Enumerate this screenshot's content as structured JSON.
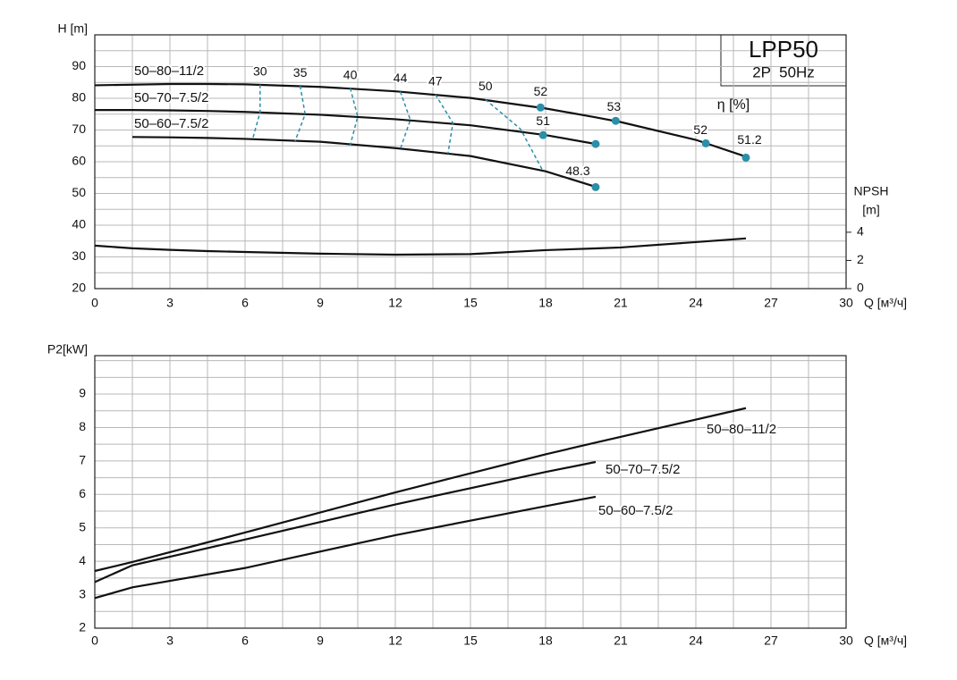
{
  "chart_data": [
    {
      "type": "line",
      "title": "LPP50",
      "subtitle": "2P  50Hz",
      "xlabel": "Q [м³/ч]",
      "ylabel": "H [m]",
      "y2label": [
        "NPSH",
        "[m]"
      ],
      "eta_label": "η [%]",
      "x": [
        0,
        1.5,
        3,
        4.5,
        6,
        9,
        12,
        15,
        18,
        20,
        21,
        24,
        26
      ],
      "xlim": [
        0,
        30
      ],
      "xticks": [
        0,
        3,
        6,
        9,
        12,
        15,
        18,
        21,
        24,
        27,
        30
      ],
      "xminorticks": [
        1.5,
        4.5,
        7.5,
        10.5,
        13.5,
        16.5,
        19.5,
        22.5,
        25.5,
        28.5
      ],
      "ylim": [
        20,
        100
      ],
      "yticks": [
        20,
        30,
        40,
        50,
        60,
        70,
        80,
        90
      ],
      "yminorticks": [
        25,
        35,
        45,
        55,
        65,
        75,
        85,
        95
      ],
      "y2lim": [
        0,
        18
      ],
      "y2ticks": [
        0,
        2,
        4
      ],
      "grid": true,
      "series": [
        {
          "name": "50–80–11/2",
          "color": "#111111",
          "values": [
            84.1,
            84.3,
            84.5,
            84.5,
            84.4,
            83.6,
            82.2,
            80.1,
            76.8,
            74.0,
            72.5,
            66.9,
            61.6
          ]
        },
        {
          "name": "50–70–7.5/2",
          "color": "#111111",
          "values": [
            76.3,
            76.3,
            76.2,
            76.0,
            75.7,
            74.8,
            73.4,
            71.5,
            68.4,
            65.6,
            null,
            null,
            null
          ]
        },
        {
          "name": "50–60–7.5/2",
          "color": "#111111",
          "values": [
            null,
            67.8,
            67.7,
            67.5,
            67.2,
            66.3,
            64.3,
            61.8,
            57.0,
            52.1,
            null,
            null,
            null
          ]
        },
        {
          "color": "#111111",
          "axis": "y2",
          "values": [
            3.05,
            2.86,
            2.75,
            2.66,
            2.6,
            2.48,
            2.41,
            2.45,
            2.73,
            2.85,
            2.92,
            3.3,
            3.56
          ]
        }
      ],
      "label_color": "#2b8fa8",
      "efficiency_color": "#2b8fa8",
      "efficiency_lines": [
        {
          "label": 30,
          "x": [
            6.6,
            6.6,
            6.3
          ],
          "values": [
            84.3,
            75.6,
            67.1
          ]
        },
        {
          "label": 35,
          "x": [
            8.2,
            8.4,
            8.0
          ],
          "values": [
            83.9,
            75.0,
            66.5
          ]
        },
        {
          "label": 40,
          "x": [
            10.2,
            10.5,
            10.2
          ],
          "values": [
            83.2,
            74.2,
            65.3
          ]
        },
        {
          "label": 44,
          "x": [
            12.2,
            12.6,
            12.2
          ],
          "values": [
            82.1,
            73.2,
            64.0
          ]
        },
        {
          "label": 47,
          "x": [
            13.6,
            14.3,
            14.1
          ],
          "values": [
            81.2,
            72.2,
            62.5
          ]
        },
        {
          "label": 50,
          "x": [
            15.6,
            17.0,
            17.9
          ],
          "values": [
            79.6,
            70.3,
            57.0
          ]
        }
      ],
      "efficiency_points": [
        {
          "label": 52,
          "x": 17.8,
          "value": 77.1
        },
        {
          "label": 53,
          "x": 20.8,
          "value": 72.9
        },
        {
          "label": 52,
          "x": 24.4,
          "value": 65.8
        },
        {
          "label": 51.2,
          "x": 26,
          "value": 61.3
        },
        {
          "label": 51,
          "x": 17.9,
          "value": 68.4
        },
        {
          "label": null,
          "x": 20,
          "value": 65.6
        },
        {
          "label": 48.3,
          "x": 20,
          "value": 52.0
        }
      ]
    },
    {
      "type": "line",
      "xlabel": "Q [м³/ч]",
      "ylabel": "P2[kW]",
      "x": [
        0,
        1.5,
        6,
        12,
        18,
        20,
        26
      ],
      "xlim": [
        0,
        30
      ],
      "xticks": [
        0,
        3,
        6,
        9,
        12,
        15,
        18,
        21,
        24,
        27,
        30
      ],
      "xminorticks": [
        1.5,
        4.5,
        7.5,
        10.5,
        13.5,
        16.5,
        19.5,
        22.5,
        25.5,
        28.5
      ],
      "ylim": [
        2,
        10.15
      ],
      "yticks": [
        2,
        3,
        4,
        5,
        6,
        7,
        8,
        9
      ],
      "yminorticks": [
        2.5,
        3.5,
        4.5,
        5.5,
        6.5,
        7.5,
        8.5,
        9.5,
        10
      ],
      "grid": true,
      "series": [
        {
          "name": "50–80–11/2",
          "color": "#111111",
          "values": [
            3.71,
            3.98,
            4.86,
            6.06,
            7.2,
            7.55,
            8.58
          ]
        },
        {
          "name": "50–70–7.5/2",
          "color": "#111111",
          "values": [
            3.38,
            3.88,
            4.65,
            5.7,
            6.67,
            6.97,
            null
          ]
        },
        {
          "name": "50–60–7.5/2",
          "color": "#111111",
          "values": [
            2.9,
            3.22,
            3.8,
            4.78,
            5.65,
            5.93,
            null
          ]
        }
      ],
      "label_color": "#2b8fa8"
    }
  ]
}
